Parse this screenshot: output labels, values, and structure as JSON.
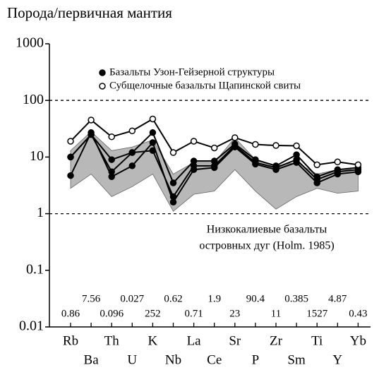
{
  "chart_data": {
    "type": "spider",
    "title": "Порода/первичная мантия",
    "categories": [
      "Rb",
      "Ba",
      "Th",
      "U",
      "K",
      "Nb",
      "La",
      "Ce",
      "Sr",
      "P",
      "Zr",
      "Sm",
      "Ti",
      "Y",
      "Yb"
    ],
    "normalization_values": [
      0.86,
      7.56,
      0.096,
      0.027,
      252,
      0.62,
      0.71,
      1.9,
      23,
      90.4,
      11,
      0.385,
      1527,
      4.87,
      0.43
    ],
    "ylim": [
      0.01,
      1000
    ],
    "yticks": [
      0.01,
      0.1,
      1,
      10,
      100,
      1000
    ],
    "ylog": true,
    "reference_lines": [
      1,
      100
    ],
    "series": [
      {
        "name": "Базальты Узон-Гейзерной структуры",
        "color": "#000000",
        "marker": "filled",
        "lines": [
          [
            10,
            25,
            9,
            12,
            27,
            3.5,
            8.5,
            8.5,
            17,
            9,
            7,
            11,
            4.5,
            6,
            6.5
          ],
          [
            4.7,
            27,
            4.5,
            7,
            18,
            1.6,
            6,
            6.5,
            15,
            7.5,
            6,
            8,
            3.5,
            5,
            5.5
          ],
          [
            10,
            25,
            5.5,
            12,
            13,
            2,
            7,
            7,
            16,
            8,
            6.5,
            9,
            4,
            5.5,
            6
          ]
        ]
      },
      {
        "name": "Субщелочные базальты Щапинской свиты",
        "color": "#000000",
        "marker": "open",
        "lines": [
          [
            19,
            45,
            22.8,
            29,
            47,
            12,
            19,
            14.5,
            22,
            16.7,
            16,
            15.8,
            7.3,
            8.2,
            7.3
          ]
        ]
      }
    ],
    "band": {
      "label": [
        "Низкокалиевые базальты",
        "островных дуг (Holm. 1985)"
      ],
      "color": "#b8b8b8",
      "upper": [
        13,
        28,
        13,
        15,
        20,
        5,
        8,
        8,
        22,
        9,
        7,
        8,
        5,
        6,
        6
      ],
      "lower": [
        2.8,
        5,
        2,
        3,
        5,
        1.1,
        2.2,
        2.5,
        6,
        2.5,
        1.2,
        2,
        2.8,
        2.3,
        2.5
      ]
    }
  }
}
